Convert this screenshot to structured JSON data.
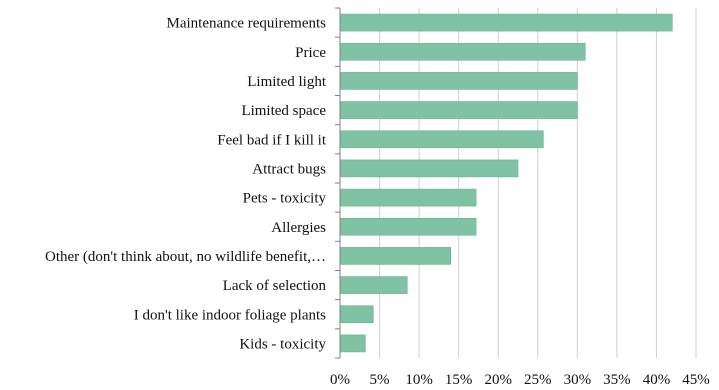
{
  "chart_data": {
    "type": "bar",
    "orientation": "horizontal",
    "title": "",
    "xlabel": "",
    "ylabel": "",
    "categories": [
      "Maintenance requirements",
      "Price",
      "Limited light",
      "Limited space",
      "Feel bad if I kill it",
      "Attract bugs",
      "Pets - toxicity",
      "Allergies",
      "Other (don't think about, no wildlife benefit,…",
      "Lack of selection",
      "I don't like indoor foliage plants",
      "Kids - toxicity"
    ],
    "values": [
      42,
      31,
      30,
      30,
      25.7,
      22.5,
      17.2,
      17.2,
      14,
      8.5,
      4.2,
      3.2
    ],
    "xlim": [
      0,
      45
    ],
    "x_ticks": [
      0,
      5,
      10,
      15,
      20,
      25,
      30,
      35,
      40,
      45
    ],
    "x_tick_labels": [
      "0%",
      "5%",
      "10%",
      "15%",
      "20%",
      "25%",
      "30%",
      "35%",
      "40%",
      "45%"
    ],
    "grid": "vertical",
    "legend": "none",
    "colors": {
      "bar_fill": "#7fc3a4",
      "bar_stroke": "#6aaf90",
      "grid": "#cfcfcf",
      "axis": "#808080",
      "text": "#111111"
    }
  }
}
